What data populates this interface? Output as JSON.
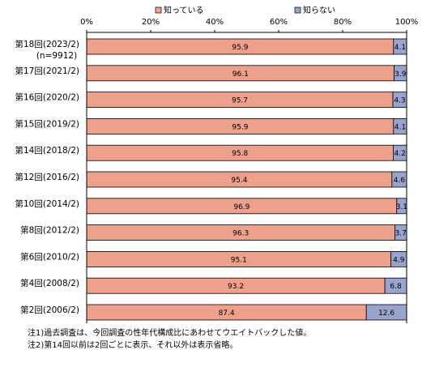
{
  "chart_data": {
    "type": "bar",
    "orientation": "horizontal",
    "stacked": true,
    "categories": [
      "第18回(2023/2)",
      "第17回(2021/2)",
      "第16回(2020/2)",
      "第15回(2019/2)",
      "第14回(2018/2)",
      "第12回(2016/2)",
      "第10回(2014/2)",
      "第8回(2012/2)",
      "第6回(2010/2)",
      "第4回(2008/2)",
      "第2回(2006/2)"
    ],
    "category_sublabels": [
      "(n=9912)",
      "",
      "",
      "",
      "",
      "",
      "",
      "",
      "",
      "",
      ""
    ],
    "series": [
      {
        "name": "知っている",
        "color": "#EDA08C",
        "values": [
          95.9,
          96.1,
          95.7,
          95.9,
          95.8,
          95.4,
          96.9,
          96.3,
          95.1,
          93.2,
          87.4
        ]
      },
      {
        "name": "知らない",
        "color": "#98A4CC",
        "values": [
          4.1,
          3.9,
          4.3,
          4.1,
          4.2,
          4.6,
          3.1,
          3.7,
          4.9,
          6.8,
          12.6
        ]
      }
    ],
    "xlim": [
      0,
      100
    ],
    "x_ticks": [
      "0%",
      "20%",
      "40%",
      "60%",
      "80%",
      "100%"
    ],
    "legend_position": "top",
    "grid": false
  },
  "notes": [
    "注1)過去調査は、今回調査の性年代構成比にあわせてウエイトバックした値。",
    "注2)第14回以前は2回ごとに表示、それ以外は表示省略。"
  ]
}
